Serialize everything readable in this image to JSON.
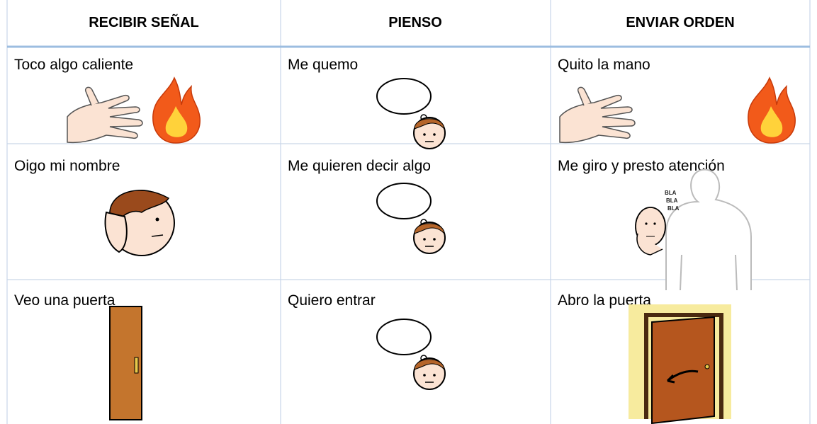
{
  "table": {
    "header": [
      "RECIBIR SEÑAL",
      "PIENSO",
      "ENVIAR ORDEN"
    ],
    "rows": [
      [
        "Toco algo caliente",
        "Me quemo",
        "Quito la mano"
      ],
      [
        "Oigo mi nombre",
        "Me quieren decir algo",
        "Me giro y presto atención"
      ],
      [
        "Veo una puerta",
        "Quiero entrar",
        "Abro la puerta"
      ]
    ]
  },
  "icons": {
    "speech": [
      "BLA",
      "BLA",
      "BLA"
    ]
  }
}
